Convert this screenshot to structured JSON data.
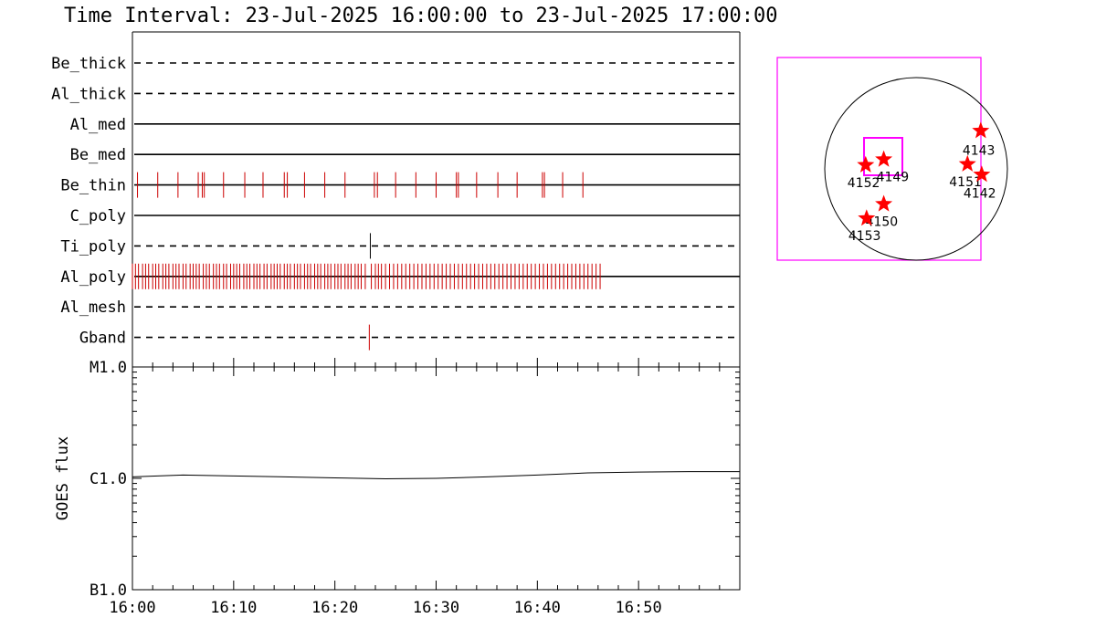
{
  "title": "Time Interval: 23-Jul-2025 16:00:00 to 23-Jul-2025 17:00:00",
  "colors": {
    "events": "#cc0000",
    "ti_event": "#000000",
    "box": "#ff00ff",
    "star": "#ff0000"
  },
  "chart_data": [
    {
      "type": "line",
      "name": "filter-event-timeline",
      "xlim_minutes": [
        0,
        60
      ],
      "x_ticks": [
        "16:00",
        "16:10",
        "16:20",
        "16:30",
        "16:40",
        "16:50"
      ],
      "rows": [
        {
          "label": "Be_thick",
          "style": "dashed",
          "events": []
        },
        {
          "label": "Al_thick",
          "style": "dashed",
          "events": []
        },
        {
          "label": "Al_med",
          "style": "solid",
          "events": []
        },
        {
          "label": "Be_med",
          "style": "solid",
          "events": []
        },
        {
          "label": "Be_thin",
          "style": "solid",
          "color": "#cc0000",
          "events": [
            0.5,
            2.5,
            4.5,
            6.5,
            6.9,
            7.1,
            9.0,
            11.1,
            12.9,
            15.0,
            15.3,
            17.0,
            19.0,
            21.0,
            23.9,
            24.2,
            26.0,
            28.0,
            30.0,
            32.0,
            32.2,
            34.0,
            36.1,
            38.0,
            40.5,
            40.7,
            42.5,
            44.5
          ]
        },
        {
          "label": "C_poly",
          "style": "solid",
          "events": []
        },
        {
          "label": "Ti_poly",
          "style": "dashed",
          "color": "#000000",
          "events": [
            23.5
          ]
        },
        {
          "label": "Al_poly",
          "style": "solid",
          "color": "#cc0000",
          "events": [
            0.0,
            0.3,
            0.6,
            1.0,
            1.3,
            1.6,
            2.0,
            2.3,
            2.6,
            3.0,
            3.3,
            3.6,
            4.0,
            4.3,
            4.6,
            5.0,
            5.3,
            5.7,
            6.0,
            6.3,
            6.6,
            7.0,
            7.3,
            7.6,
            8.0,
            8.3,
            8.6,
            9.0,
            9.3,
            9.7,
            10.0,
            10.3,
            10.6,
            11.0,
            11.3,
            11.6,
            12.0,
            12.3,
            12.6,
            13.0,
            13.3,
            13.7,
            14.0,
            14.3,
            14.6,
            15.0,
            15.3,
            15.6,
            16.0,
            16.3,
            16.6,
            17.0,
            17.3,
            17.6,
            18.0,
            18.3,
            18.6,
            19.0,
            19.3,
            19.6,
            20.0,
            20.3,
            20.6,
            21.0,
            21.3,
            21.6,
            22.0,
            22.3,
            22.6,
            23.0,
            23.6,
            24.0,
            24.3,
            24.6,
            25.0,
            25.4,
            25.8,
            26.2,
            26.6,
            27.0,
            27.4,
            27.8,
            28.2,
            28.6,
            29.0,
            29.4,
            29.8,
            30.2,
            30.6,
            31.0,
            31.4,
            31.8,
            32.2,
            32.6,
            33.0,
            33.4,
            33.8,
            34.2,
            34.6,
            35.0,
            35.4,
            35.8,
            36.2,
            36.6,
            37.0,
            37.4,
            37.8,
            38.2,
            38.6,
            39.0,
            39.4,
            39.8,
            40.2,
            40.6,
            41.0,
            41.4,
            41.8,
            42.2,
            42.6,
            43.0,
            43.4,
            43.8,
            44.2,
            44.6,
            45.0,
            45.4,
            45.8,
            46.2
          ]
        },
        {
          "label": "Al_mesh",
          "style": "dashed",
          "events": []
        },
        {
          "label": "Gband",
          "style": "dashed",
          "color": "#cc0000",
          "events": [
            23.4
          ]
        }
      ]
    },
    {
      "type": "line",
      "name": "goes-flux",
      "ylabel": "GOES flux",
      "y_scale": "log",
      "ylim": [
        1e-07,
        1e-05
      ],
      "y_ticks": [
        {
          "label": "B1.0",
          "value": 1e-07
        },
        {
          "label": "C1.0",
          "value": 1e-06
        },
        {
          "label": "M1.0",
          "value": 1e-05
        }
      ],
      "x_ticks": [
        "16:00",
        "16:10",
        "16:20",
        "16:30",
        "16:40",
        "16:50"
      ],
      "xlim_minutes": [
        0,
        60
      ],
      "series": [
        {
          "x": [
            0,
            5,
            10,
            15,
            20,
            25,
            30,
            35,
            40,
            45,
            50,
            55,
            60
          ],
          "y": [
            1.03e-06,
            1.07e-06,
            1.05e-06,
            1.03e-06,
            1.01e-06,
            9.9e-07,
            1e-06,
            1.03e-06,
            1.07e-06,
            1.12e-06,
            1.14e-06,
            1.15e-06,
            1.15e-06
          ]
        }
      ]
    },
    {
      "type": "scatter",
      "name": "solar-disk-map",
      "regions": [
        {
          "label": "4149",
          "x": -340,
          "y": 100
        },
        {
          "label": "4152",
          "x": -530,
          "y": 40
        },
        {
          "label": "4150",
          "x": -340,
          "y": -370
        },
        {
          "label": "4153",
          "x": -520,
          "y": -520
        },
        {
          "label": "4143",
          "x": 680,
          "y": 400
        },
        {
          "label": "4151",
          "x": 540,
          "y": 50
        },
        {
          "label": "4142",
          "x": 690,
          "y": -60
        }
      ]
    }
  ]
}
